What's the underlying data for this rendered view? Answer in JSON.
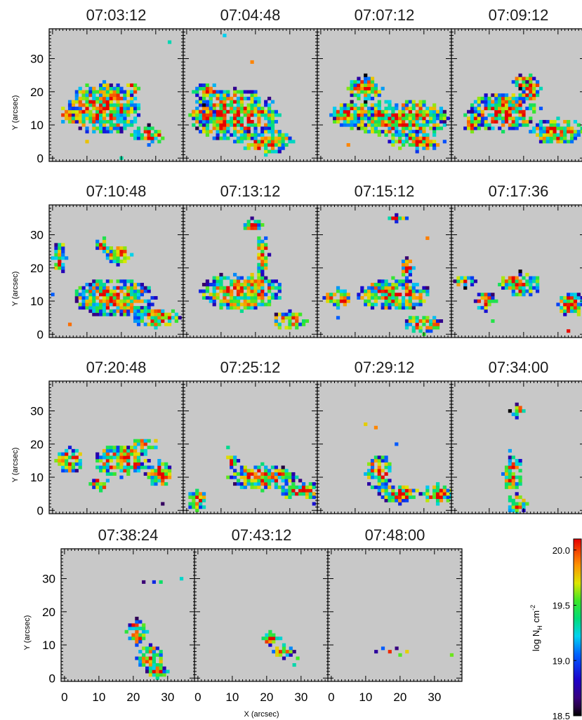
{
  "chart_data": {
    "type": "heatmap",
    "panels": [
      {
        "time": "07:03:12",
        "blobs": [
          [
            15,
            15,
            11,
            8
          ],
          [
            5,
            13,
            3,
            3
          ],
          [
            28,
            7,
            5,
            3
          ],
          [
            23,
            21,
            2,
            2
          ]
        ],
        "isolated": [
          [
            34,
            35
          ],
          [
            20,
            0
          ],
          [
            10,
            5
          ]
        ]
      },
      {
        "time": "07:04:48",
        "blobs": [
          [
            14,
            13,
            13,
            8
          ],
          [
            5,
            13,
            4,
            3
          ],
          [
            6,
            20,
            4,
            3
          ],
          [
            23,
            5,
            8,
            4
          ]
        ],
        "isolated": [
          [
            19,
            29
          ],
          [
            11,
            37
          ]
        ]
      },
      {
        "time": "07:07:12",
        "blobs": [
          [
            23,
            12,
            14,
            6
          ],
          [
            9,
            13,
            6,
            4
          ],
          [
            13,
            21,
            5,
            4
          ],
          [
            28,
            5,
            8,
            3
          ]
        ],
        "isolated": [
          [
            8,
            4
          ]
        ]
      },
      {
        "time": "07:09:12",
        "blobs": [
          [
            14,
            14,
            10,
            6
          ],
          [
            22,
            21,
            3,
            4
          ],
          [
            19,
            23,
            2,
            2
          ],
          [
            30,
            8,
            8,
            4
          ],
          [
            5,
            11,
            3,
            3
          ]
        ],
        "isolated": [
          [
            25,
            15
          ]
        ]
      },
      {
        "time": "07:10:48",
        "blobs": [
          [
            18,
            11,
            12,
            6
          ],
          [
            19,
            24,
            4,
            3
          ],
          [
            15,
            27,
            3,
            2
          ],
          [
            30,
            5,
            7,
            3
          ],
          [
            2,
            23,
            2,
            5
          ]
        ],
        "isolated": [
          [
            0,
            12
          ],
          [
            5,
            3
          ]
        ]
      },
      {
        "time": "07:13:12",
        "blobs": [
          [
            16,
            13,
            12,
            6
          ],
          [
            22,
            24,
            2,
            6
          ],
          [
            19,
            33,
            3,
            2
          ],
          [
            30,
            4,
            5,
            3
          ]
        ],
        "isolated": [
          [
            26,
            6
          ]
        ]
      },
      {
        "time": "07:15:12",
        "blobs": [
          [
            21,
            12,
            11,
            5
          ],
          [
            5,
            11,
            4,
            3
          ],
          [
            25,
            20,
            2,
            3
          ],
          [
            22,
            35,
            3,
            1
          ],
          [
            30,
            3,
            6,
            3
          ]
        ],
        "isolated": [
          [
            31,
            29
          ],
          [
            5,
            5
          ]
        ]
      },
      {
        "time": "07:17:36",
        "blobs": [
          [
            19,
            15,
            6,
            4
          ],
          [
            9,
            10,
            3,
            3
          ],
          [
            3,
            16,
            3,
            2
          ],
          [
            34,
            9,
            4,
            4
          ]
        ],
        "isolated": [
          [
            38,
            23
          ],
          [
            11,
            4
          ],
          [
            33,
            1
          ]
        ]
      },
      {
        "time": "07:20:48",
        "blobs": [
          [
            5,
            15,
            4,
            4
          ],
          [
            20,
            15,
            8,
            5
          ],
          [
            14,
            8,
            3,
            2
          ],
          [
            31,
            11,
            4,
            4
          ],
          [
            27,
            20,
            4,
            2
          ]
        ],
        "isolated": [
          [
            32,
            2
          ]
        ]
      },
      {
        "time": "07:25:12",
        "blobs": [
          [
            22,
            10,
            10,
            4
          ],
          [
            33,
            6,
            6,
            3
          ],
          [
            3,
            3,
            3,
            3
          ],
          [
            13,
            15,
            2,
            2
          ]
        ],
        "isolated": [
          [
            12,
            19
          ],
          [
            37,
            2
          ]
        ]
      },
      {
        "time": "07:29:12",
        "blobs": [
          [
            17,
            11,
            4,
            6
          ],
          [
            34,
            5,
            5,
            3
          ],
          [
            23,
            5,
            6,
            3
          ]
        ],
        "isolated": [
          [
            13,
            26
          ],
          [
            16,
            25
          ],
          [
            22,
            20
          ]
        ]
      },
      {
        "time": "07:34:00",
        "blobs": [
          [
            18,
            30,
            2,
            2
          ],
          [
            17,
            11,
            3,
            6
          ],
          [
            18,
            2,
            3,
            3
          ]
        ],
        "isolated": [
          [
            16,
            18
          ]
        ]
      },
      {
        "time": "07:38:24",
        "blobs": [
          [
            21,
            14,
            3,
            4
          ],
          [
            25,
            6,
            4,
            4
          ],
          [
            27,
            2,
            3,
            2
          ]
        ],
        "isolated": [
          [
            23,
            29
          ],
          [
            26,
            29
          ],
          [
            28,
            29
          ],
          [
            34,
            30
          ]
        ]
      },
      {
        "time": "07:43:12",
        "blobs": [
          [
            21,
            12,
            3,
            2
          ],
          [
            25,
            8,
            3,
            2
          ]
        ],
        "isolated": [
          [
            29,
            6
          ],
          [
            28,
            4
          ]
        ]
      },
      {
        "time": "07:48:00",
        "blobs": [],
        "isolated": [
          [
            13,
            8
          ],
          [
            15,
            9
          ],
          [
            17,
            8
          ],
          [
            19,
            9
          ],
          [
            20,
            7
          ],
          [
            22,
            8
          ],
          [
            35,
            7
          ]
        ]
      }
    ],
    "xlabel": "X (arcsec)",
    "ylabel": "Y (arcsec)",
    "xticks": [
      0,
      10,
      20,
      30
    ],
    "yticks": [
      0,
      10,
      20,
      30
    ],
    "xlim": [
      -1,
      38
    ],
    "ylim": [
      -1,
      39
    ],
    "colorbar": {
      "label": "log N_H cm^-2",
      "label_base": "log N",
      "label_sub": "H",
      "label_unit": "cm",
      "label_sup": "-2",
      "range": [
        18.5,
        20.1
      ],
      "ticks": [
        "18.5",
        "19.0",
        "19.5",
        "20.0"
      ]
    },
    "background_color": "#c8c8c8"
  }
}
